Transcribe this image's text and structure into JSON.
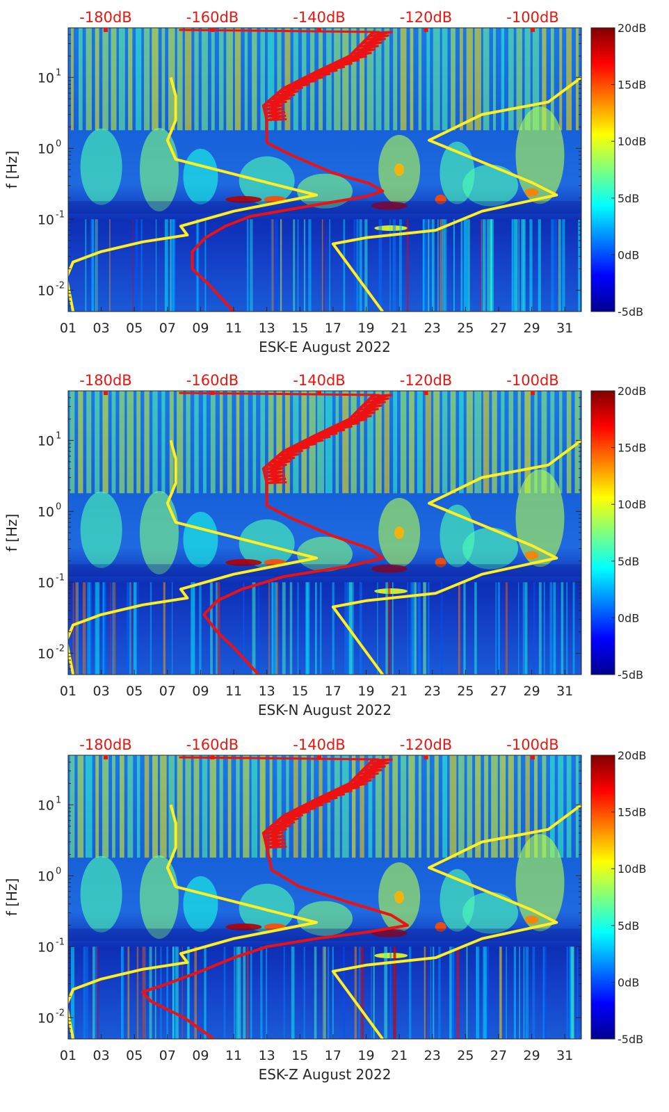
{
  "chart_data": [
    {
      "type": "heatmap",
      "xlabel": "ESK-E August 2022",
      "ylabel": "f [Hz]",
      "x_ticks": [
        "01",
        "03",
        "05",
        "07",
        "09",
        "11",
        "13",
        "15",
        "17",
        "19",
        "21",
        "23",
        "25",
        "27",
        "29",
        "31"
      ],
      "xlim": [
        1,
        32
      ],
      "y_scale": "log",
      "ylim": [
        0.005,
        50
      ],
      "y_ticks": [
        {
          "base": "10",
          "exp": "-2"
        },
        {
          "base": "10",
          "exp": "-1"
        },
        {
          "base": "10",
          "exp": "0"
        },
        {
          "base": "10",
          "exp": "1"
        }
      ],
      "top_axis": {
        "labels": [
          "-180dB",
          "-160dB",
          "-140dB",
          "-120dB",
          "-100dB"
        ],
        "color": "#e8160f"
      },
      "colorbar": {
        "labels": [
          "20dB",
          "15dB",
          "10dB",
          "5dB",
          "0dB",
          "-5dB"
        ],
        "range": [
          -5,
          20
        ],
        "colormap": "jet"
      },
      "series": [
        {
          "color": "#ffee22",
          "points": [
            [
              1.3,
              0.005
            ],
            [
              0.9,
              0.015
            ],
            [
              1.3,
              0.025
            ],
            [
              3,
              0.035
            ],
            [
              5.5,
              0.048
            ],
            [
              8.2,
              0.06
            ],
            [
              7.8,
              0.08
            ],
            [
              11,
              0.13
            ],
            [
              16,
              0.22
            ],
            [
              13,
              0.33
            ],
            [
              7.5,
              0.7
            ],
            [
              7.0,
              1.3
            ],
            [
              7.5,
              2.5
            ],
            [
              7.5,
              5.5
            ],
            [
              7.2,
              10
            ]
          ]
        },
        {
          "color": "#ffee22",
          "points": [
            [
              20,
              0.005
            ],
            [
              17,
              0.045
            ],
            [
              19,
              0.055
            ],
            [
              23.2,
              0.07
            ],
            [
              26,
              0.13
            ],
            [
              30.5,
              0.22
            ],
            [
              29,
              0.33
            ],
            [
              25,
              0.8
            ],
            [
              22.8,
              1.3
            ],
            [
              26,
              3
            ],
            [
              30,
              4.5
            ],
            [
              32,
              10
            ]
          ]
        },
        {
          "color": "#ee1111",
          "points": [
            [
              11,
              0.005
            ],
            [
              9.5,
              0.012
            ],
            [
              8.5,
              0.02
            ],
            [
              8.5,
              0.035
            ],
            [
              9.3,
              0.055
            ],
            [
              10.5,
              0.08
            ],
            [
              12,
              0.11
            ],
            [
              16,
              0.16
            ],
            [
              19,
              0.21
            ],
            [
              20,
              0.25
            ],
            [
              19.2,
              0.32
            ],
            [
              17,
              0.45
            ],
            [
              14.5,
              0.8
            ],
            [
              13,
              1.2
            ],
            [
              13,
              2.5
            ],
            [
              12.8,
              4
            ],
            [
              14,
              7
            ],
            [
              16,
              12
            ],
            [
              18,
              20
            ],
            [
              19.5,
              45
            ]
          ]
        }
      ]
    },
    {
      "type": "heatmap",
      "xlabel": "ESK-N August 2022",
      "ylabel": "f [Hz]",
      "x_ticks": [
        "01",
        "03",
        "05",
        "07",
        "09",
        "11",
        "13",
        "15",
        "17",
        "19",
        "21",
        "23",
        "25",
        "27",
        "29",
        "31"
      ],
      "xlim": [
        1,
        32
      ],
      "y_scale": "log",
      "ylim": [
        0.005,
        50
      ],
      "y_ticks": [
        {
          "base": "10",
          "exp": "-2"
        },
        {
          "base": "10",
          "exp": "-1"
        },
        {
          "base": "10",
          "exp": "0"
        },
        {
          "base": "10",
          "exp": "1"
        }
      ],
      "top_axis": {
        "labels": [
          "-180dB",
          "-160dB",
          "-140dB",
          "-120dB",
          "-100dB"
        ],
        "color": "#e8160f"
      },
      "colorbar": {
        "labels": [
          "20dB",
          "15dB",
          "10dB",
          "5dB",
          "0dB",
          "-5dB"
        ],
        "range": [
          -5,
          20
        ],
        "colormap": "jet"
      },
      "series": [
        {
          "color": "#ffee22",
          "points": [
            [
              1.3,
              0.005
            ],
            [
              0.9,
              0.015
            ],
            [
              1.3,
              0.025
            ],
            [
              3,
              0.035
            ],
            [
              5.5,
              0.048
            ],
            [
              8.2,
              0.06
            ],
            [
              7.8,
              0.08
            ],
            [
              11,
              0.13
            ],
            [
              16,
              0.22
            ],
            [
              13,
              0.33
            ],
            [
              7.5,
              0.7
            ],
            [
              7.0,
              1.3
            ],
            [
              7.5,
              2.5
            ],
            [
              7.5,
              5.5
            ],
            [
              7.2,
              10
            ]
          ]
        },
        {
          "color": "#ffee22",
          "points": [
            [
              20,
              0.005
            ],
            [
              17,
              0.045
            ],
            [
              19,
              0.055
            ],
            [
              23.2,
              0.07
            ],
            [
              26,
              0.13
            ],
            [
              30.5,
              0.22
            ],
            [
              29,
              0.33
            ],
            [
              25,
              0.8
            ],
            [
              22.8,
              1.3
            ],
            [
              26,
              3
            ],
            [
              30,
              4.5
            ],
            [
              32,
              10
            ]
          ]
        },
        {
          "color": "#ee1111",
          "points": [
            [
              12.5,
              0.005
            ],
            [
              11,
              0.012
            ],
            [
              10,
              0.02
            ],
            [
              9.2,
              0.035
            ],
            [
              10,
              0.055
            ],
            [
              11.5,
              0.08
            ],
            [
              14,
              0.12
            ],
            [
              18,
              0.17
            ],
            [
              20,
              0.22
            ],
            [
              19.2,
              0.3
            ],
            [
              17,
              0.45
            ],
            [
              14.5,
              0.8
            ],
            [
              13,
              1.2
            ],
            [
              13,
              2.5
            ],
            [
              12.8,
              4
            ],
            [
              14,
              7
            ],
            [
              16,
              12
            ],
            [
              18,
              20
            ],
            [
              19.5,
              45
            ]
          ]
        }
      ]
    },
    {
      "type": "heatmap",
      "xlabel": "ESK-Z August 2022",
      "ylabel": "f [Hz]",
      "x_ticks": [
        "01",
        "03",
        "05",
        "07",
        "09",
        "11",
        "13",
        "15",
        "17",
        "19",
        "21",
        "23",
        "25",
        "27",
        "29",
        "31"
      ],
      "xlim": [
        1,
        32
      ],
      "y_scale": "log",
      "ylim": [
        0.005,
        50
      ],
      "y_ticks": [
        {
          "base": "10",
          "exp": "-2"
        },
        {
          "base": "10",
          "exp": "-1"
        },
        {
          "base": "10",
          "exp": "0"
        },
        {
          "base": "10",
          "exp": "1"
        }
      ],
      "top_axis": {
        "labels": [
          "-180dB",
          "-160dB",
          "-140dB",
          "-120dB",
          "-100dB"
        ],
        "color": "#e8160f"
      },
      "colorbar": {
        "labels": [
          "20dB",
          "15dB",
          "10dB",
          "5dB",
          "0dB",
          "-5dB"
        ],
        "range": [
          -5,
          20
        ],
        "colormap": "jet"
      },
      "series": [
        {
          "color": "#ffee22",
          "points": [
            [
              1.3,
              0.005
            ],
            [
              0.9,
              0.015
            ],
            [
              1.3,
              0.025
            ],
            [
              3,
              0.035
            ],
            [
              5.5,
              0.048
            ],
            [
              8.2,
              0.06
            ],
            [
              7.8,
              0.08
            ],
            [
              11,
              0.13
            ],
            [
              16,
              0.22
            ],
            [
              13,
              0.33
            ],
            [
              7.5,
              0.7
            ],
            [
              7.0,
              1.3
            ],
            [
              7.5,
              2.5
            ],
            [
              7.5,
              5.5
            ],
            [
              7.2,
              10
            ]
          ]
        },
        {
          "color": "#ffee22",
          "points": [
            [
              20,
              0.005
            ],
            [
              17,
              0.045
            ],
            [
              19,
              0.055
            ],
            [
              23.2,
              0.07
            ],
            [
              26,
              0.13
            ],
            [
              30.5,
              0.22
            ],
            [
              29,
              0.33
            ],
            [
              25,
              0.8
            ],
            [
              22.8,
              1.3
            ],
            [
              26,
              3
            ],
            [
              30,
              4.5
            ],
            [
              32,
              10
            ]
          ]
        },
        {
          "color": "#ee1111",
          "points": [
            [
              9.8,
              0.005
            ],
            [
              8,
              0.01
            ],
            [
              6,
              0.017
            ],
            [
              5.5,
              0.023
            ],
            [
              7,
              0.03
            ],
            [
              9,
              0.045
            ],
            [
              11,
              0.07
            ],
            [
              13,
              0.1
            ],
            [
              16,
              0.13
            ],
            [
              19,
              0.16
            ],
            [
              21.5,
              0.2
            ],
            [
              20.5,
              0.28
            ],
            [
              18,
              0.42
            ],
            [
              15,
              0.7
            ],
            [
              13.3,
              1.2
            ],
            [
              13,
              2.5
            ],
            [
              12.8,
              4
            ],
            [
              14,
              7
            ],
            [
              16,
              12
            ],
            [
              18,
              20
            ],
            [
              19.5,
              45
            ]
          ]
        }
      ]
    }
  ]
}
